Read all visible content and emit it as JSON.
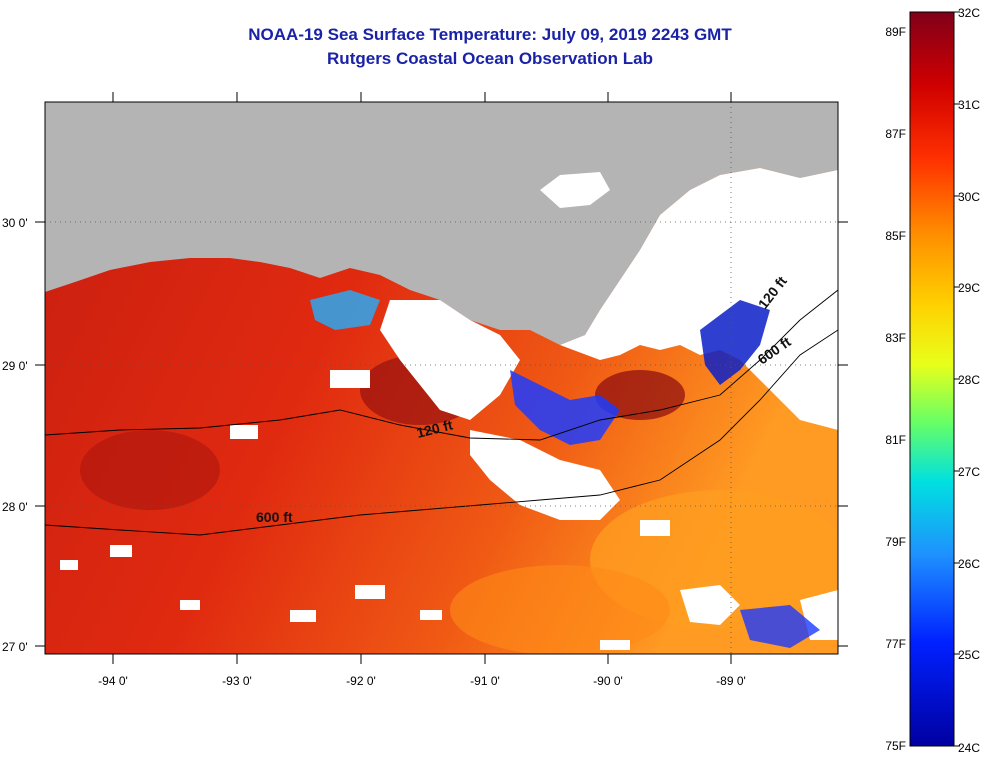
{
  "title": {
    "line1": "NOAA-19 Sea Surface Temperature:  July 09, 2019 2243 GMT",
    "line2": "Rutgers Coastal Ocean Observation Lab"
  },
  "map": {
    "lon_labels": [
      "-94 0'",
      "-93 0'",
      "-92 0'",
      "-91 0'",
      "-90 0'",
      "-89 0'"
    ],
    "lat_labels": [
      "30 0'",
      "29 0'",
      "28 0'",
      "27 0'"
    ],
    "isobath_labels": [
      "120 ft",
      "600 ft",
      "120 ft",
      "600 ft"
    ],
    "colors": {
      "land": "#b4b4b4",
      "cloud": "#ffffff",
      "coastline": "#ffffff"
    }
  },
  "colorbar": {
    "celsius": [
      "32C",
      "31C",
      "30C",
      "29C",
      "28C",
      "27C",
      "26C",
      "25C",
      "24C"
    ],
    "fahrenheit": [
      "89F",
      "87F",
      "85F",
      "83F",
      "81F",
      "79F",
      "77F",
      "75F"
    ],
    "stops": [
      "#80001a",
      "#d00000",
      "#ff3000",
      "#ff8c00",
      "#ffd200",
      "#e8ff1a",
      "#66ff66",
      "#00e0e0",
      "#1e90ff",
      "#0020ff",
      "#0000a0"
    ]
  }
}
